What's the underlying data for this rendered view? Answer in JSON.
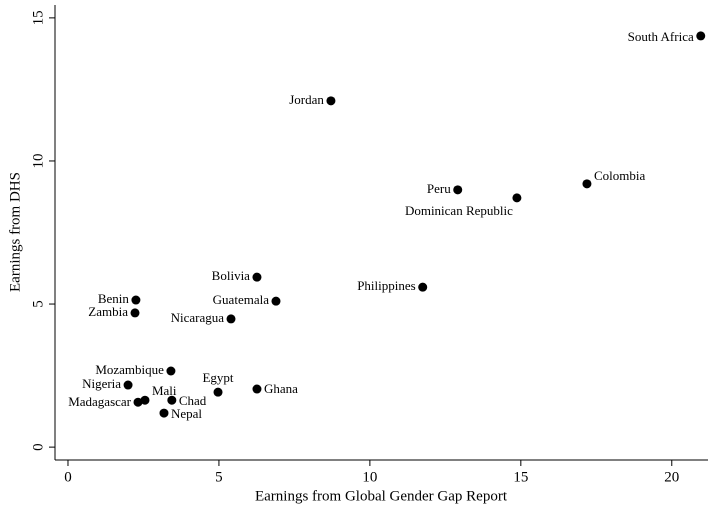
{
  "chart_data": {
    "type": "scatter",
    "x_label": "Earnings from Global Gender Gap Report",
    "y_label": "Earnings from DHS",
    "color": "#000000",
    "xlim": [
      -0.43,
      21.2
    ],
    "ylim": [
      -0.45,
      15.45
    ],
    "xticks": [
      0,
      5,
      10,
      15,
      20
    ],
    "yticks": [
      0,
      5,
      10,
      15
    ],
    "labels": [
      "South Africa",
      "Jordan",
      "Peru",
      "Dominican Republic",
      "Colombia",
      "Philippines",
      "Bolivia",
      "Guatemala",
      "Nicaragua",
      "Benin",
      "Zambia",
      "Mozambique",
      "Nigeria",
      "Egypt",
      "Ghana",
      "Madagascar",
      "Mali",
      "Chad",
      "Nepal"
    ],
    "x": [
      20.96,
      8.71,
      12.91,
      14.87,
      17.19,
      11.75,
      6.26,
      6.89,
      5.4,
      2.25,
      2.22,
      3.41,
      1.99,
      4.97,
      6.26,
      2.32,
      2.55,
      3.44,
      3.18
    ],
    "y": [
      14.37,
      12.1,
      8.99,
      8.71,
      9.2,
      5.59,
      5.94,
      5.1,
      4.48,
      5.14,
      4.69,
      2.66,
      2.17,
      1.92,
      2.03,
      1.57,
      1.64,
      1.64,
      1.19
    ]
  }
}
